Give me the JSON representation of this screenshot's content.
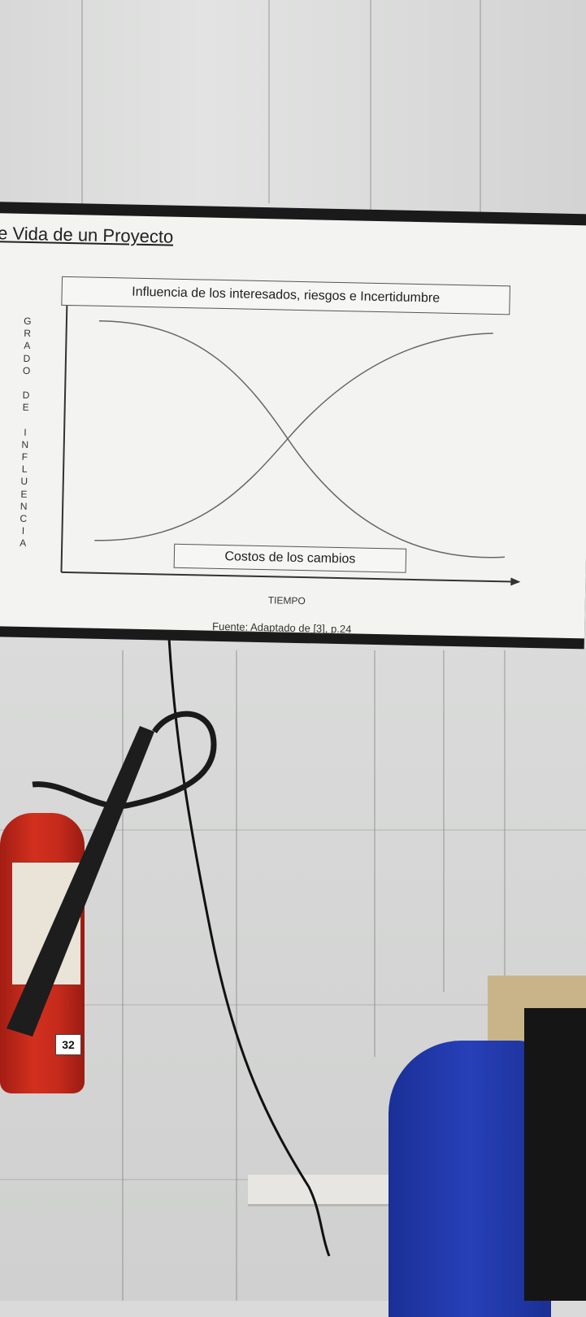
{
  "slide": {
    "title": "e Vida de un Proyecto",
    "top_box_label": "Influencia de los interesados, riesgos e Incertidumbre",
    "bottom_box_label": "Costos de los cambios",
    "y_axis_letters": [
      "G",
      "R",
      "A",
      "D",
      "O",
      "",
      "D",
      "E",
      "",
      "I",
      "N",
      "F",
      "L",
      "U",
      "E",
      "N",
      "C",
      "I",
      "A"
    ],
    "x_axis_label": "TIEMPO",
    "source": "Fuente: Adaptado de [3], p.24"
  },
  "extinguisher": {
    "number": "32"
  },
  "colors": {
    "slide_background": "#f3f3f1",
    "screen_bezel": "#1a1a1a",
    "extinguisher_red": "#c52a1b",
    "chair_blue": "#2740b8"
  }
}
